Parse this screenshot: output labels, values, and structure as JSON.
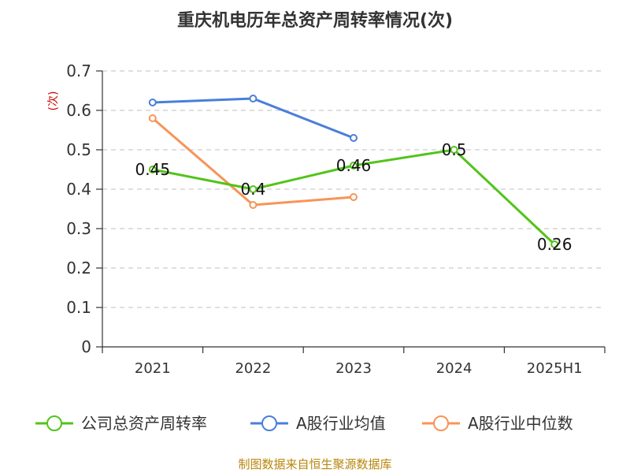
{
  "chart_data": {
    "type": "line",
    "title": "重庆机电历年总资产周转率情况(次)",
    "ylabel": "(次)",
    "xlabel": "",
    "categories": [
      "2021",
      "2022",
      "2023",
      "2024",
      "2025H1"
    ],
    "ylim": [
      0,
      0.7
    ],
    "yticks": [
      0,
      0.1,
      0.2,
      0.3,
      0.4,
      0.5,
      0.6,
      0.7
    ],
    "grid": true,
    "legend_position": "bottom",
    "series": [
      {
        "name": "公司总资产周转率",
        "color": "#52c41a",
        "values": [
          0.45,
          0.4,
          0.46,
          0.5,
          0.26
        ],
        "data_labels": [
          "0.45",
          "0.4",
          "0.46",
          "0.5",
          "0.26"
        ]
      },
      {
        "name": "A股行业均值",
        "color": "#4a7fd9",
        "values": [
          0.62,
          0.63,
          0.53,
          null,
          null
        ]
      },
      {
        "name": "A股行业中位数",
        "color": "#f79459",
        "values": [
          0.58,
          0.36,
          0.38,
          null,
          null
        ]
      }
    ]
  },
  "source": "制图数据来自恒生聚源数据库"
}
